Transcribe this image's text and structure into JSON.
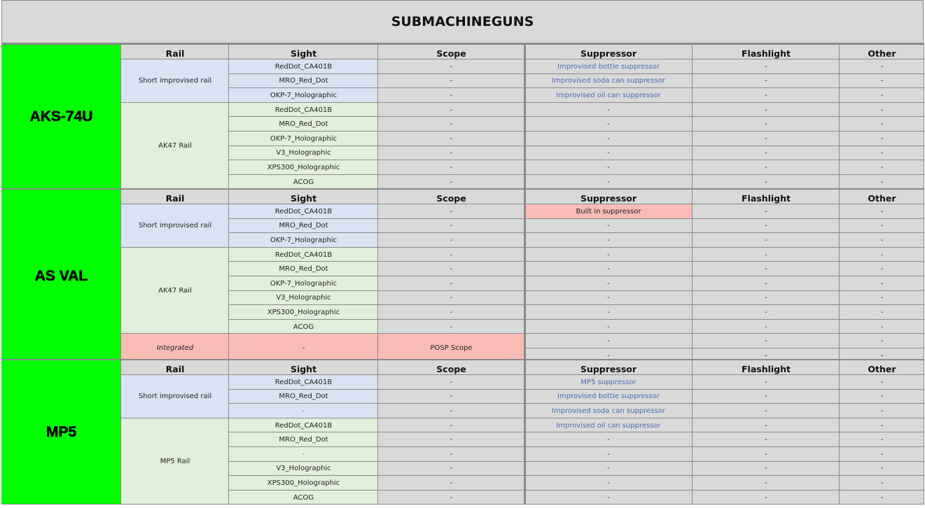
{
  "title": "SUBMACHINEGUNS",
  "headers": {
    "rail": "Rail",
    "sight": "Sight",
    "scope": "Scope",
    "suppressor": "Suppressor",
    "flashlight": "Flashlight",
    "other": "Other"
  },
  "colors": {
    "weapon_bg": "#00ff00",
    "short_rail_bg": "#dae3f3",
    "long_rail_bg": "#e2efda",
    "integrated_bg": "#f8bcb4",
    "suppressor_text": "#4a6fb5",
    "cell_bg": "#d9d9d9"
  },
  "weapons": [
    {
      "name": "AKS-74U",
      "rails": [
        {
          "label": "Short improvised rail",
          "style": "blue",
          "sights": [
            "RedDot_CA401B",
            "MRO_Red_Dot",
            "OKP-7_Holographic"
          ]
        },
        {
          "label": "AK47 Rail",
          "style": "green",
          "sights": [
            "RedDot_CA401B",
            "MRO_Red_Dot",
            "OKP-7_Holographic",
            "V3_Holographic",
            "XPS300_Holographic",
            "ACOG"
          ]
        }
      ],
      "scope": [
        "-",
        "-",
        "-",
        "-",
        "-",
        "-",
        "-",
        "-",
        "-"
      ],
      "suppressor": [
        "Improvised bottle suppressor",
        "Improvised soda can suppressor",
        "Improvised oil can suppressor",
        "-",
        "-",
        "-",
        "-",
        "-",
        "-"
      ],
      "flashlight": [
        "-",
        "-",
        "-",
        "-",
        "-",
        "-",
        "-",
        "-",
        "-"
      ],
      "other": [
        "-",
        "-",
        "-",
        "-",
        "-",
        "-",
        "-",
        "-",
        "-"
      ]
    },
    {
      "name": "AS VAL",
      "rails": [
        {
          "label": "Short improvised rail",
          "style": "blue",
          "sights": [
            "RedDot_CA401B",
            "MRO_Red_Dot",
            "OKP-7_Holographic"
          ]
        },
        {
          "label": "AK47 Rail",
          "style": "green",
          "sights": [
            "RedDot_CA401B",
            "MRO_Red_Dot",
            "OKP-7_Holographic",
            "V3_Holographic",
            "XPS300_Holographic",
            "ACOG"
          ]
        }
      ],
      "integrated": {
        "rail": "Integrated",
        "sight": "-",
        "scope": "POSP Scope"
      },
      "scope": [
        "-",
        "-",
        "-",
        "-",
        "-",
        "-",
        "-",
        "-",
        "-"
      ],
      "suppressor": [
        "Built in suppressor",
        "-",
        "-",
        "-",
        "-",
        "-",
        "-",
        "-",
        "-",
        "-",
        "-"
      ],
      "flashlight": [
        "-",
        "-",
        "-",
        "-",
        "-",
        "-",
        "-",
        "-",
        "-",
        "-",
        "-"
      ],
      "other": [
        "-",
        "-",
        "-",
        "-",
        "-",
        "-",
        "-",
        "-",
        "-",
        "-",
        "-"
      ]
    },
    {
      "name": "MP5",
      "rails": [
        {
          "label": "Short improvised rail",
          "style": "blue",
          "sights": [
            "RedDot_CA401B",
            "MRO_Red_Dot",
            "-"
          ]
        },
        {
          "label": "MP5 Rail",
          "style": "green",
          "sights": [
            "RedDot_CA401B",
            "MRO_Red_Dot",
            "-",
            "V3_Holographic",
            "XPS300_Holographic",
            "ACOG"
          ]
        }
      ],
      "scope": [
        "-",
        "-",
        "-",
        "-",
        "-",
        "-",
        "-",
        "-",
        "-"
      ],
      "suppressor": [
        "MP5 suppressor",
        "Improvised bottle suppressor",
        "Improvised soda can suppressor",
        "Improvised oil can suppressor",
        "-",
        "-",
        "-",
        "-",
        "-"
      ],
      "flashlight": [
        "-",
        "-",
        "-",
        "-",
        "-",
        "-",
        "-",
        "-",
        "-"
      ],
      "other": [
        "-",
        "-",
        "-",
        "-",
        "-",
        "-",
        "-",
        "-",
        "-"
      ]
    }
  ]
}
